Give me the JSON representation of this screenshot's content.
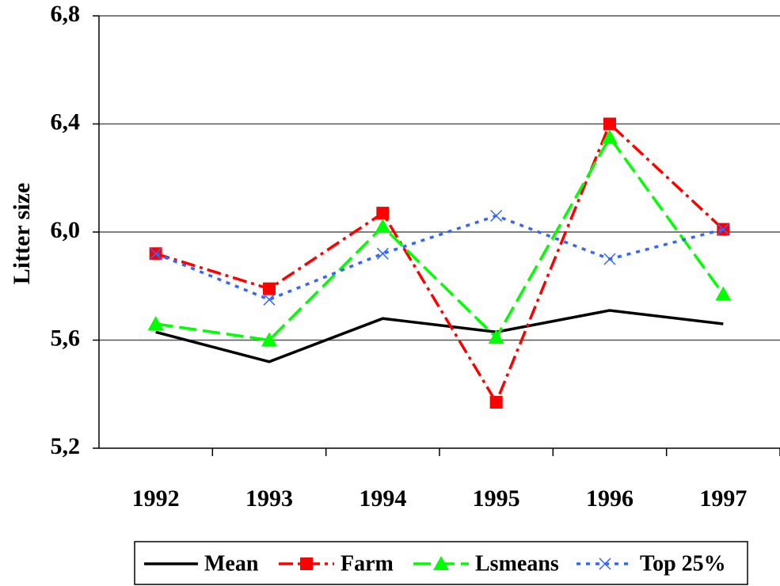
{
  "chart_data": {
    "type": "line",
    "y_label": "Litter size",
    "categories": [
      "1992",
      "1993",
      "1994",
      "1995",
      "1996",
      "1997"
    ],
    "ylim": [
      5.2,
      6.8
    ],
    "yticks": [
      {
        "value": 5.2,
        "label": "5,2"
      },
      {
        "value": 5.6,
        "label": "5,6"
      },
      {
        "value": 6.0,
        "label": "6,0"
      },
      {
        "value": 6.4,
        "label": "6,4"
      },
      {
        "value": 6.8,
        "label": "6,8"
      }
    ],
    "grid": true,
    "legend": "bottom",
    "series": [
      {
        "name": "Mean",
        "color": "#000000",
        "dash": "solid",
        "marker": "none",
        "values": [
          5.63,
          5.52,
          5.68,
          5.63,
          5.71,
          5.66
        ]
      },
      {
        "name": "Farm",
        "color": "#ff0000",
        "dash": "dashdot",
        "marker": "square",
        "values": [
          5.92,
          5.79,
          6.07,
          5.37,
          6.4,
          6.01
        ]
      },
      {
        "name": "Lsmeans",
        "color": "#00ff00",
        "dash": "dashed",
        "marker": "triangle",
        "values": [
          5.66,
          5.6,
          6.02,
          5.61,
          6.35,
          5.77
        ]
      },
      {
        "name": "Top 25%",
        "color": "#3366ff",
        "dash": "dotted",
        "marker": "x",
        "values": [
          5.92,
          5.75,
          5.92,
          6.06,
          5.9,
          6.01
        ]
      }
    ]
  }
}
